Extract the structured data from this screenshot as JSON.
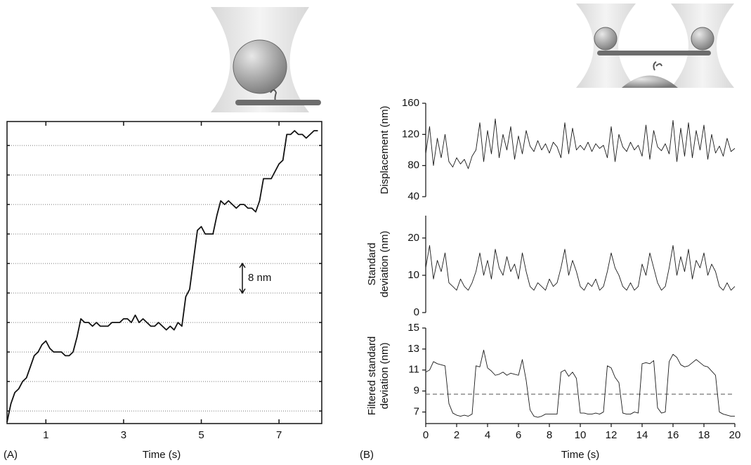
{
  "chart_data": [
    {
      "type": "line",
      "panel_label": "(A)",
      "xlabel": "Time (s)",
      "xlim": [
        0,
        8.1
      ],
      "xticks": [
        1,
        3,
        5,
        7
      ],
      "ylim": [
        -3.4,
        78.5
      ],
      "ygrid": [
        0,
        8,
        16,
        24,
        32,
        40,
        48,
        56,
        64,
        72
      ],
      "scale_bar": {
        "value": 8,
        "label": "8 nm"
      },
      "x": [
        0,
        0.1,
        0.2,
        0.3,
        0.4,
        0.5,
        0.6,
        0.7,
        0.8,
        0.9,
        1,
        1.1,
        1.2,
        1.3,
        1.4,
        1.5,
        1.6,
        1.7,
        1.8,
        1.9,
        2,
        2.1,
        2.2,
        2.3,
        2.4,
        2.5,
        2.6,
        2.7,
        2.8,
        2.9,
        3,
        3.1,
        3.2,
        3.3,
        3.4,
        3.5,
        3.6,
        3.7,
        3.8,
        3.9,
        4,
        4.1,
        4.2,
        4.3,
        4.4,
        4.5,
        4.6,
        4.7,
        4.8,
        4.9,
        5,
        5.1,
        5.2,
        5.3,
        5.4,
        5.5,
        5.6,
        5.7,
        5.8,
        5.9,
        6,
        6.1,
        6.2,
        6.3,
        6.4,
        6.5,
        6.6,
        6.7,
        6.8,
        6.9,
        7,
        7.1,
        7.2,
        7.3,
        7.4,
        7.5,
        7.6,
        7.7,
        7.8,
        7.9,
        8
      ],
      "series": [
        {
          "color": "#111111",
          "values": [
            -3,
            2,
            5,
            6,
            8,
            9,
            12,
            15,
            16,
            18,
            19,
            17,
            16,
            16,
            16,
            15,
            15,
            16,
            20,
            25,
            24,
            24,
            23,
            24,
            23,
            23,
            23,
            24,
            24,
            24,
            25,
            25,
            24,
            26,
            24,
            25,
            24,
            23,
            23,
            24,
            23,
            22,
            23,
            22,
            24,
            23,
            31,
            33,
            41,
            49,
            50,
            48,
            48,
            48,
            53,
            57,
            56,
            57,
            56,
            55,
            56,
            56,
            55,
            55,
            54,
            57,
            63,
            63,
            63,
            65,
            67,
            68,
            75,
            75,
            76,
            75,
            75,
            74,
            75,
            76,
            76
          ]
        }
      ]
    },
    {
      "type": "line",
      "panel_label": "(B)",
      "xlabel": "Time (s)",
      "xlim": [
        0,
        20
      ],
      "xticks": [
        0,
        2,
        4,
        6,
        8,
        10,
        12,
        14,
        16,
        18,
        20
      ],
      "x": [
        0,
        0.25,
        0.5,
        0.75,
        1,
        1.25,
        1.5,
        1.75,
        2,
        2.25,
        2.5,
        2.75,
        3,
        3.25,
        3.5,
        3.75,
        4,
        4.25,
        4.5,
        4.75,
        5,
        5.25,
        5.5,
        5.75,
        6,
        6.25,
        6.5,
        6.75,
        7,
        7.25,
        7.5,
        7.75,
        8,
        8.25,
        8.5,
        8.75,
        9,
        9.25,
        9.5,
        9.75,
        10,
        10.25,
        10.5,
        10.75,
        11,
        11.25,
        11.5,
        11.75,
        12,
        12.25,
        12.5,
        12.75,
        13,
        13.25,
        13.5,
        13.75,
        14,
        14.25,
        14.5,
        14.75,
        15,
        15.25,
        15.5,
        15.75,
        16,
        16.25,
        16.5,
        16.75,
        17,
        17.25,
        17.5,
        17.75,
        18,
        18.25,
        18.5,
        18.75,
        19,
        19.25,
        19.5,
        19.75,
        20
      ],
      "panels": [
        {
          "ylabel": [
            "Displacement (nm)"
          ],
          "ylim": [
            40,
            160
          ],
          "yticks": [
            40,
            80,
            120,
            160
          ],
          "series": [
            {
              "color": "#1a1a1a",
              "values": [
                95,
                130,
                80,
                115,
                90,
                120,
                85,
                78,
                90,
                82,
                88,
                76,
                92,
                100,
                135,
                85,
                125,
                95,
                140,
                90,
                120,
                100,
                130,
                88,
                118,
                95,
                125,
                105,
                98,
                112,
                100,
                108,
                96,
                110,
                104,
                90,
                135,
                95,
                128,
                100,
                106,
                100,
                110,
                98,
                108,
                102,
                106,
                90,
                130,
                85,
                120,
                104,
                98,
                110,
                100,
                106,
                92,
                132,
                88,
                125,
                104,
                99,
                108,
                95,
                138,
                85,
                128,
                92,
                135,
                90,
                125,
                100,
                132,
                88,
                120,
                96,
                105,
                92,
                115,
                98,
                102
              ]
            }
          ]
        },
        {
          "ylabel": [
            "Standard",
            "deviation (nm)"
          ],
          "ylim": [
            0,
            26
          ],
          "yticks": [
            0,
            10,
            20
          ],
          "series": [
            {
              "color": "#1a1a1a",
              "values": [
                12,
                18,
                9,
                14,
                11,
                16,
                8,
                7,
                6,
                9,
                7,
                6,
                8,
                11,
                16,
                10,
                14,
                9,
                17,
                12,
                10,
                15,
                11,
                13,
                9,
                16,
                11,
                7,
                6,
                8,
                7,
                6,
                9,
                7,
                8,
                12,
                17,
                10,
                14,
                11,
                7,
                6,
                8,
                7,
                9,
                6,
                7,
                11,
                16,
                12,
                10,
                7,
                6,
                8,
                6,
                7,
                13,
                10,
                16,
                12,
                8,
                6,
                7,
                12,
                18,
                10,
                15,
                11,
                17,
                9,
                14,
                12,
                16,
                10,
                13,
                11,
                7,
                6,
                8,
                6,
                7
              ]
            }
          ]
        },
        {
          "ylabel": [
            "Filtered standard",
            "deviation (nm)"
          ],
          "ylim": [
            5.9,
            15
          ],
          "yticks": [
            7,
            9,
            11,
            13,
            15
          ],
          "threshold": 8.7,
          "series": [
            {
              "color": "#1a1a1a",
              "values": [
                10.8,
                11.0,
                11.8,
                11.6,
                11.5,
                11.4,
                7.8,
                6.9,
                6.7,
                6.6,
                6.7,
                6.6,
                6.8,
                11.4,
                11.3,
                12.9,
                11.2,
                10.9,
                10.5,
                10.6,
                10.8,
                10.5,
                10.7,
                10.6,
                10.5,
                12.0,
                10.0,
                7.2,
                6.6,
                6.5,
                6.6,
                6.8,
                6.8,
                6.8,
                6.8,
                10.8,
                11.0,
                10.4,
                10.8,
                10.2,
                6.9,
                6.9,
                6.8,
                6.8,
                6.9,
                6.8,
                7.0,
                11.4,
                11.2,
                10.3,
                9.8,
                6.9,
                6.8,
                6.8,
                7.0,
                6.9,
                11.6,
                11.7,
                11.6,
                11.9,
                7.4,
                6.9,
                7.0,
                11.8,
                12.5,
                12.2,
                11.5,
                11.3,
                11.4,
                11.7,
                12.0,
                11.7,
                11.4,
                11.3,
                10.9,
                10.5,
                7.0,
                6.8,
                6.7,
                6.6,
                6.6
              ]
            }
          ]
        }
      ]
    }
  ]
}
